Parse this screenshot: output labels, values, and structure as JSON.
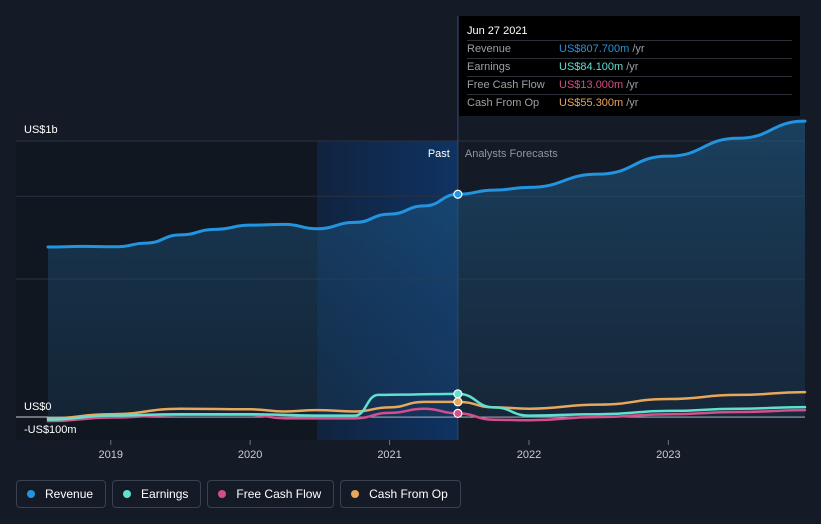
{
  "tooltip": {
    "date": "Jun 27 2021",
    "rows": [
      {
        "label": "Revenue",
        "value": "US$807.700m",
        "unit": "/yr",
        "color": "#2394df"
      },
      {
        "label": "Earnings",
        "value": "US$84.100m",
        "unit": "/yr",
        "color": "#5fe0d0"
      },
      {
        "label": "Free Cash Flow",
        "value": "US$13.000m",
        "unit": "/yr",
        "color": "#d44f8a"
      },
      {
        "label": "Cash From Op",
        "value": "US$55.300m",
        "unit": "/yr",
        "color": "#e8a75a"
      }
    ]
  },
  "legend": [
    {
      "label": "Revenue",
      "color": "#2394df"
    },
    {
      "label": "Earnings",
      "color": "#5fe0d0"
    },
    {
      "label": "Free Cash Flow",
      "color": "#d44f8a"
    },
    {
      "label": "Cash From Op",
      "color": "#e8a75a"
    }
  ],
  "chart_data": {
    "type": "area",
    "y_labels": {
      "top": "US$1b",
      "zero": "US$0",
      "bottom": "-US$100m"
    },
    "ylim": [
      -100,
      1000
    ],
    "xlim": [
      2018.55,
      2023.98
    ],
    "x_ticks": [
      {
        "label": "2019",
        "value": 2019
      },
      {
        "label": "2020",
        "value": 2020
      },
      {
        "label": "2021",
        "value": 2021
      },
      {
        "label": "2022",
        "value": 2022
      },
      {
        "label": "2023",
        "value": 2023
      }
    ],
    "divider": {
      "past_label": "Past",
      "forecast_label": "Analysts Forecasts",
      "x": 2021.49,
      "past_start": 2020.48
    },
    "series": [
      {
        "name": "Revenue",
        "color": "#2394df",
        "x": [
          2018.55,
          2018.8,
          2019.05,
          2019.25,
          2019.5,
          2019.75,
          2020.0,
          2020.25,
          2020.48,
          2020.75,
          2021.0,
          2021.25,
          2021.49,
          2021.75,
          2022.0,
          2022.5,
          2023.0,
          2023.5,
          2023.98
        ],
        "y": [
          616,
          618,
          617,
          630,
          660,
          680,
          695,
          698,
          682,
          705,
          735,
          765,
          807,
          822,
          832,
          880,
          945,
          1010,
          1072
        ]
      },
      {
        "name": "Earnings",
        "color": "#5fe0d0",
        "x": [
          2018.55,
          2019.0,
          2019.5,
          2020.0,
          2020.48,
          2020.75,
          2020.92,
          2021.1,
          2021.3,
          2021.49,
          2021.75,
          2022.0,
          2022.5,
          2023.0,
          2023.5,
          2023.98
        ],
        "y": [
          -10,
          5,
          10,
          10,
          5,
          5,
          80,
          81,
          83,
          84,
          35,
          5,
          10,
          22,
          30,
          36
        ]
      },
      {
        "name": "Free Cash Flow",
        "color": "#d44f8a",
        "x": [
          2018.55,
          2019.0,
          2019.5,
          2020.0,
          2020.25,
          2020.48,
          2020.75,
          2021.0,
          2021.25,
          2021.49,
          2021.75,
          2022.0,
          2022.5,
          2023.0,
          2023.5,
          2023.98
        ],
        "y": [
          -15,
          -2,
          8,
          8,
          -5,
          -5,
          -5,
          15,
          30,
          13,
          -10,
          -12,
          0,
          10,
          18,
          25
        ]
      },
      {
        "name": "Cash From Op",
        "color": "#e8a75a",
        "x": [
          2018.55,
          2019.0,
          2019.5,
          2020.0,
          2020.25,
          2020.48,
          2020.75,
          2021.0,
          2021.25,
          2021.49,
          2021.75,
          2022.0,
          2022.5,
          2023.0,
          2023.5,
          2023.98
        ],
        "y": [
          -5,
          10,
          30,
          28,
          20,
          25,
          20,
          35,
          55,
          55,
          35,
          30,
          45,
          65,
          80,
          90
        ]
      }
    ]
  }
}
